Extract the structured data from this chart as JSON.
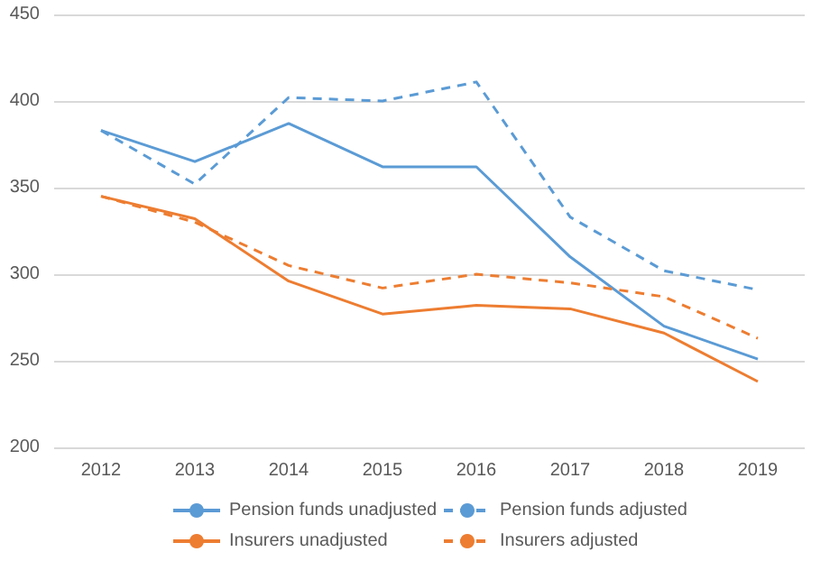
{
  "chart_data": {
    "type": "line",
    "categories": [
      "2012",
      "2013",
      "2014",
      "2015",
      "2016",
      "2017",
      "2018",
      "2019"
    ],
    "series": [
      {
        "name": "Pension funds unadjusted",
        "color": "#5b9bd5",
        "line_style": "solid",
        "values": [
          383,
          365,
          387,
          362,
          362,
          310,
          270,
          251
        ]
      },
      {
        "name": "Pension funds adjusted",
        "color": "#5b9bd5",
        "line_style": "dashed",
        "values": [
          383,
          352,
          402,
          400,
          411,
          333,
          302,
          291
        ]
      },
      {
        "name": "Insurers unadjusted",
        "color": "#ed7d31",
        "line_style": "solid",
        "values": [
          345,
          332,
          296,
          277,
          282,
          280,
          266,
          238
        ]
      },
      {
        "name": "Insurers adjusted",
        "color": "#ed7d31",
        "line_style": "dashed",
        "values": [
          345,
          330,
          305,
          292,
          300,
          295,
          287,
          263
        ]
      }
    ],
    "ylim": [
      200,
      450
    ],
    "yticks": [
      200,
      250,
      300,
      350,
      400,
      450
    ],
    "grid": "y",
    "legend": "bottom",
    "marker": "none"
  }
}
